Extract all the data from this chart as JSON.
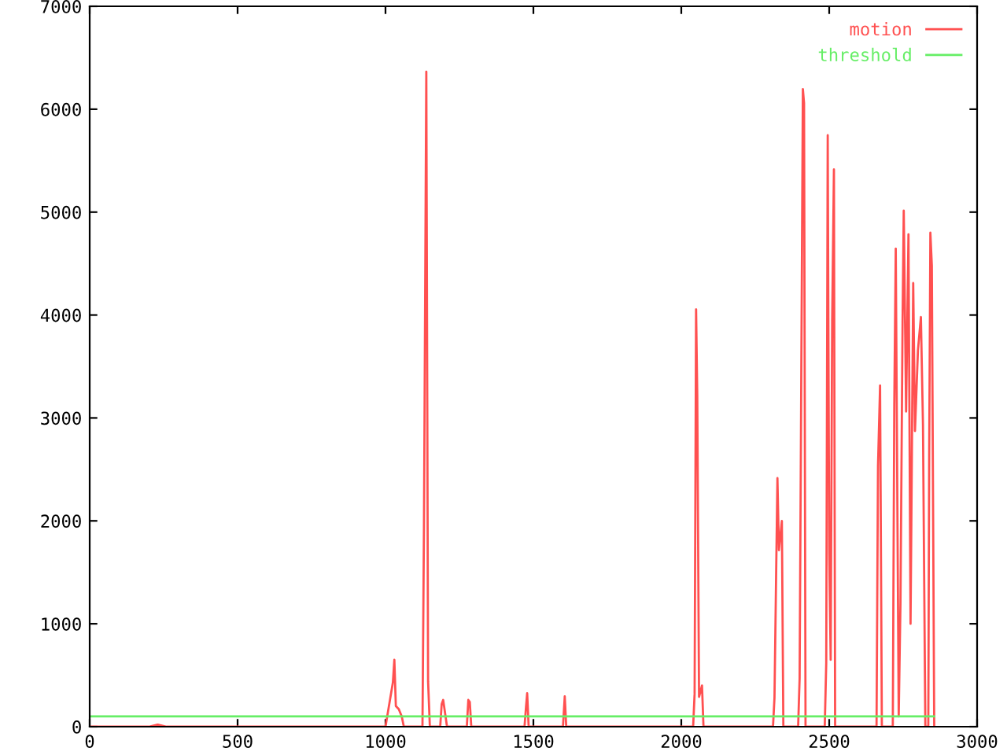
{
  "chart_data": {
    "type": "line",
    "series": [
      {
        "name": "motion",
        "color": "#ff5050",
        "x": [
          0,
          200,
          230,
          260,
          1000,
          1025,
          1030,
          1035,
          1045,
          1055,
          1062,
          1125,
          1130,
          1138,
          1144,
          1150,
          1185,
          1190,
          1195,
          1200,
          1208,
          1275,
          1280,
          1285,
          1290,
          1470,
          1475,
          1479,
          1484,
          1600,
          1606,
          1611,
          2040,
          2045,
          2050,
          2054,
          2060,
          2070,
          2075,
          2310,
          2315,
          2325,
          2330,
          2340,
          2345,
          2395,
          2400,
          2411,
          2415,
          2420,
          2485,
          2490,
          2495,
          2500,
          2505,
          2510,
          2516,
          2520,
          2660,
          2665,
          2672,
          2678,
          2715,
          2720,
          2725,
          2735,
          2741,
          2748,
          2752,
          2760,
          2768,
          2775,
          2784,
          2790,
          2800,
          2810,
          2817,
          2825,
          2835,
          2838,
          2842,
          2847,
          2855
        ],
        "values": [
          0,
          0,
          20,
          0,
          0,
          430,
          650,
          200,
          170,
          100,
          0,
          0,
          1910,
          6365,
          440,
          0,
          0,
          220,
          260,
          160,
          0,
          0,
          260,
          240,
          0,
          0,
          190,
          325,
          0,
          0,
          295,
          0,
          0,
          320,
          4055,
          3215,
          290,
          400,
          0,
          0,
          280,
          2415,
          1715,
          2000,
          0,
          0,
          470,
          6195,
          6060,
          0,
          0,
          620,
          5747,
          1686,
          650,
          3943,
          5415,
          0,
          0,
          2537,
          3316,
          0,
          0,
          3123,
          4646,
          100,
          1212,
          3928,
          5013,
          3062,
          4785,
          1000,
          4310,
          2873,
          3658,
          3980,
          2935,
          0,
          0,
          2630,
          4800,
          4480,
          0
        ]
      },
      {
        "name": "threshold",
        "color": "#66ee66",
        "x": [
          0,
          2855
        ],
        "values": [
          100,
          100
        ]
      }
    ],
    "xlim": [
      0,
      3000
    ],
    "xticks": [
      0,
      500,
      1000,
      1500,
      2000,
      2500,
      3000
    ],
    "ylim": [
      0,
      7000
    ],
    "yticks": [
      0,
      1000,
      2000,
      3000,
      4000,
      5000,
      6000,
      7000
    ],
    "grid": false,
    "legend": "top right"
  }
}
